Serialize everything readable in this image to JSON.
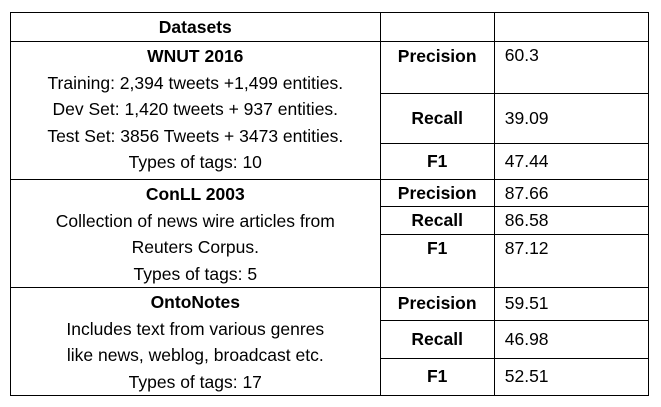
{
  "header": {
    "datasets_label": "Datasets"
  },
  "groups": [
    {
      "name": "WNUT 2016",
      "lines": [
        "Training: 2,394 tweets +1,499 entities.",
        "Dev Set: 1,420 tweets + 937 entities.",
        "Test Set: 3856 Tweets + 3473 entities.",
        "Types of tags: 10"
      ],
      "metrics": [
        {
          "label": "Precision",
          "value": "60.3"
        },
        {
          "label": "Recall",
          "value": "39.09"
        },
        {
          "label": "F1",
          "value": "47.44"
        }
      ]
    },
    {
      "name": "ConLL 2003",
      "lines": [
        "Collection of news wire articles from",
        "Reuters Corpus.",
        "Types of tags: 5"
      ],
      "metrics": [
        {
          "label": "Precision",
          "value": "87.66"
        },
        {
          "label": "Recall",
          "value": "86.58"
        },
        {
          "label": "F1",
          "value": "87.12"
        }
      ]
    },
    {
      "name": "OntoNotes",
      "lines": [
        "Includes text from various genres",
        "like news, weblog, broadcast etc.",
        "Types of tags: 17"
      ],
      "metrics": [
        {
          "label": "Precision",
          "value": "59.51"
        },
        {
          "label": "Recall",
          "value": "46.98"
        },
        {
          "label": "F1",
          "value": "52.51"
        }
      ]
    }
  ]
}
